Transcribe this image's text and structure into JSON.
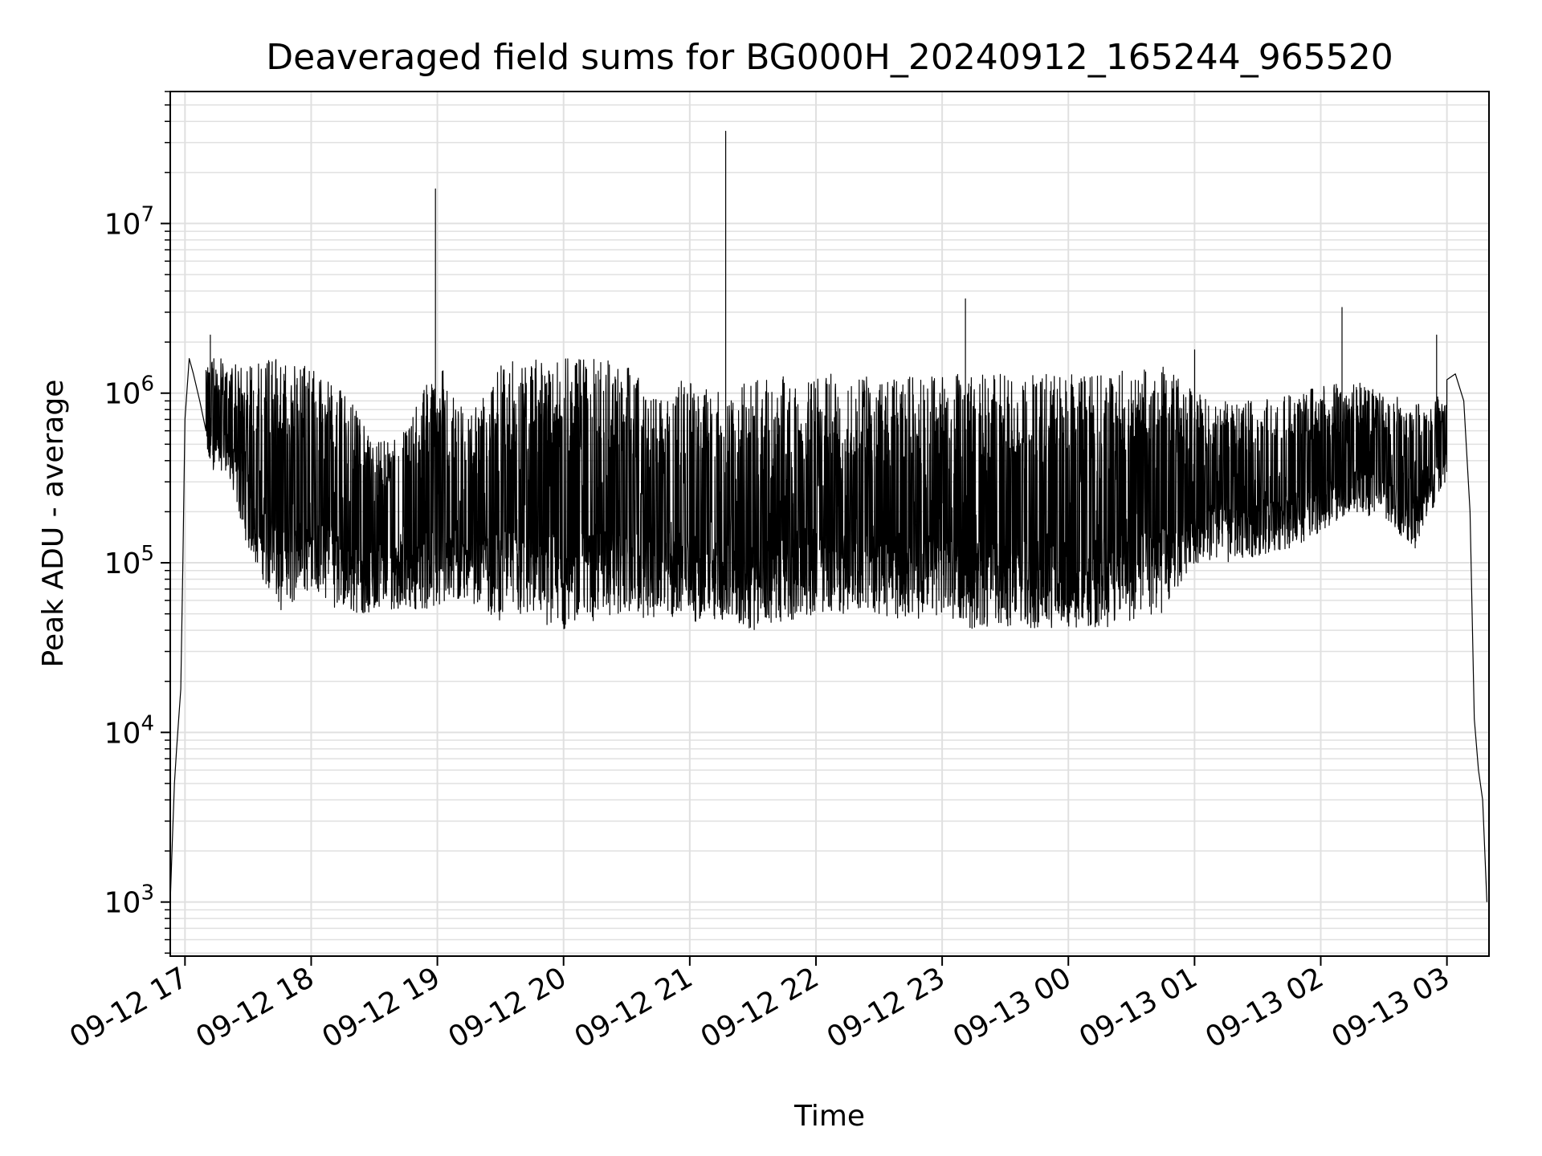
{
  "chart_data": {
    "type": "line",
    "title": "Deaveraged field sums for BG000H_20240912_165244_965520",
    "xlabel": "Time",
    "ylabel": "Peak ADU - average",
    "yscale": "log",
    "ylim": [
      480,
      60000000
    ],
    "xlim": [
      "2024-09-12 16:53",
      "2024-09-13 03:20"
    ],
    "grid": true,
    "line_color": "#000000",
    "grid_color": "#e0e0e0",
    "x_ticks": [
      {
        "t": "2024-09-12 17:00",
        "label": "09-12 17"
      },
      {
        "t": "2024-09-12 18:00",
        "label": "09-12 18"
      },
      {
        "t": "2024-09-12 19:00",
        "label": "09-12 19"
      },
      {
        "t": "2024-09-12 20:00",
        "label": "09-12 20"
      },
      {
        "t": "2024-09-12 21:00",
        "label": "09-12 21"
      },
      {
        "t": "2024-09-12 22:00",
        "label": "09-12 22"
      },
      {
        "t": "2024-09-12 23:00",
        "label": "09-12 23"
      },
      {
        "t": "2024-09-13 00:00",
        "label": "09-13 00"
      },
      {
        "t": "2024-09-13 01:00",
        "label": "09-13 01"
      },
      {
        "t": "2024-09-13 02:00",
        "label": "09-13 02"
      },
      {
        "t": "2024-09-13 03:00",
        "label": "09-13 03"
      }
    ],
    "y_ticks": [
      {
        "value": 1000,
        "base": "10",
        "exp": "3"
      },
      {
        "value": 10000,
        "base": "10",
        "exp": "4"
      },
      {
        "value": 100000,
        "base": "10",
        "exp": "5"
      },
      {
        "value": 1000000,
        "base": "10",
        "exp": "6"
      },
      {
        "value": 10000000,
        "base": "10",
        "exp": "7"
      }
    ],
    "envelope": [
      {
        "t": "2024-09-12 17:20",
        "low": 350000,
        "high": 1600000
      },
      {
        "t": "2024-09-12 17:30",
        "low": 120000,
        "high": 1500000
      },
      {
        "t": "2024-09-12 17:45",
        "low": 50000,
        "high": 1600000
      },
      {
        "t": "2024-09-12 18:00",
        "low": 70000,
        "high": 1400000
      },
      {
        "t": "2024-09-12 18:15",
        "low": 50000,
        "high": 1100000
      },
      {
        "t": "2024-09-12 18:30",
        "low": 50000,
        "high": 500000
      },
      {
        "t": "2024-09-12 18:45",
        "low": 55000,
        "high": 600000
      },
      {
        "t": "2024-09-12 19:00",
        "low": 50000,
        "high": 1600000
      },
      {
        "t": "2024-09-12 19:15",
        "low": 60000,
        "high": 700000
      },
      {
        "t": "2024-09-12 19:30",
        "low": 45000,
        "high": 1500000
      },
      {
        "t": "2024-09-12 19:45",
        "low": 45000,
        "high": 1600000
      },
      {
        "t": "2024-09-12 20:00",
        "low": 40000,
        "high": 1600000
      },
      {
        "t": "2024-09-12 20:15",
        "low": 45000,
        "high": 1600000
      },
      {
        "t": "2024-09-12 20:30",
        "low": 50000,
        "high": 1500000
      },
      {
        "t": "2024-09-12 20:45",
        "low": 45000,
        "high": 900000
      },
      {
        "t": "2024-09-12 21:00",
        "low": 45000,
        "high": 1300000
      },
      {
        "t": "2024-09-12 21:15",
        "low": 45000,
        "high": 1000000
      },
      {
        "t": "2024-09-12 21:30",
        "low": 40000,
        "high": 1200000
      },
      {
        "t": "2024-09-12 21:45",
        "low": 45000,
        "high": 1300000
      },
      {
        "t": "2024-09-12 22:00",
        "low": 50000,
        "high": 1300000
      },
      {
        "t": "2024-09-12 22:15",
        "low": 50000,
        "high": 1300000
      },
      {
        "t": "2024-09-12 22:30",
        "low": 50000,
        "high": 1300000
      },
      {
        "t": "2024-09-12 22:45",
        "low": 45000,
        "high": 1300000
      },
      {
        "t": "2024-09-12 23:00",
        "low": 50000,
        "high": 1300000
      },
      {
        "t": "2024-09-12 23:15",
        "low": 40000,
        "high": 1300000
      },
      {
        "t": "2024-09-12 23:30",
        "low": 40000,
        "high": 1300000
      },
      {
        "t": "2024-09-12 23:45",
        "low": 40000,
        "high": 1300000
      },
      {
        "t": "2024-09-13 00:00",
        "low": 40000,
        "high": 1300000
      },
      {
        "t": "2024-09-13 00:15",
        "low": 40000,
        "high": 1300000
      },
      {
        "t": "2024-09-13 00:30",
        "low": 45000,
        "high": 1400000
      },
      {
        "t": "2024-09-13 00:45",
        "low": 50000,
        "high": 1500000
      },
      {
        "t": "2024-09-13 01:00",
        "low": 100000,
        "high": 1000000
      },
      {
        "t": "2024-09-13 01:15",
        "low": 100000,
        "high": 900000
      },
      {
        "t": "2024-09-13 01:30",
        "low": 110000,
        "high": 900000
      },
      {
        "t": "2024-09-13 01:45",
        "low": 120000,
        "high": 1000000
      },
      {
        "t": "2024-09-13 02:00",
        "low": 150000,
        "high": 1100000
      },
      {
        "t": "2024-09-13 02:15",
        "low": 200000,
        "high": 1200000
      },
      {
        "t": "2024-09-13 02:30",
        "low": 180000,
        "high": 1000000
      },
      {
        "t": "2024-09-13 02:45",
        "low": 120000,
        "high": 900000
      },
      {
        "t": "2024-09-13 03:00",
        "low": 300000,
        "high": 1000000
      }
    ],
    "spikes": [
      {
        "t": "2024-09-12 17:12",
        "y": 2200000
      },
      {
        "t": "2024-09-12 18:59",
        "y": 16000000
      },
      {
        "t": "2024-09-12 21:17",
        "y": 35000000
      },
      {
        "t": "2024-09-12 23:11",
        "y": 3600000
      },
      {
        "t": "2024-09-13 01:00",
        "y": 1800000
      },
      {
        "t": "2024-09-13 02:10",
        "y": 3200000
      },
      {
        "t": "2024-09-13 02:55",
        "y": 2200000
      }
    ],
    "edges": {
      "start": [
        {
          "t": "2024-09-12 16:53",
          "y": 1000
        },
        {
          "t": "2024-09-12 16:54",
          "y": 2300
        },
        {
          "t": "2024-09-12 16:55",
          "y": 5000
        },
        {
          "t": "2024-09-12 16:56",
          "y": 8000
        },
        {
          "t": "2024-09-12 16:57",
          "y": 12000
        },
        {
          "t": "2024-09-12 16:58",
          "y": 18000
        },
        {
          "t": "2024-09-12 16:59",
          "y": 100000
        },
        {
          "t": "2024-09-12 17:00",
          "y": 700000
        },
        {
          "t": "2024-09-12 17:02",
          "y": 1600000
        },
        {
          "t": "2024-09-12 17:04",
          "y": 1300000
        },
        {
          "t": "2024-09-12 17:07",
          "y": 900000
        },
        {
          "t": "2024-09-12 17:10",
          "y": 600000
        }
      ],
      "end": [
        {
          "t": "2024-09-13 03:00",
          "y": 1200000
        },
        {
          "t": "2024-09-13 03:04",
          "y": 1300000
        },
        {
          "t": "2024-09-13 03:08",
          "y": 900000
        },
        {
          "t": "2024-09-13 03:11",
          "y": 200000
        },
        {
          "t": "2024-09-13 03:13",
          "y": 12000
        },
        {
          "t": "2024-09-13 03:15",
          "y": 6000
        },
        {
          "t": "2024-09-13 03:17",
          "y": 4000
        },
        {
          "t": "2024-09-13 03:19",
          "y": 1000
        }
      ]
    }
  }
}
